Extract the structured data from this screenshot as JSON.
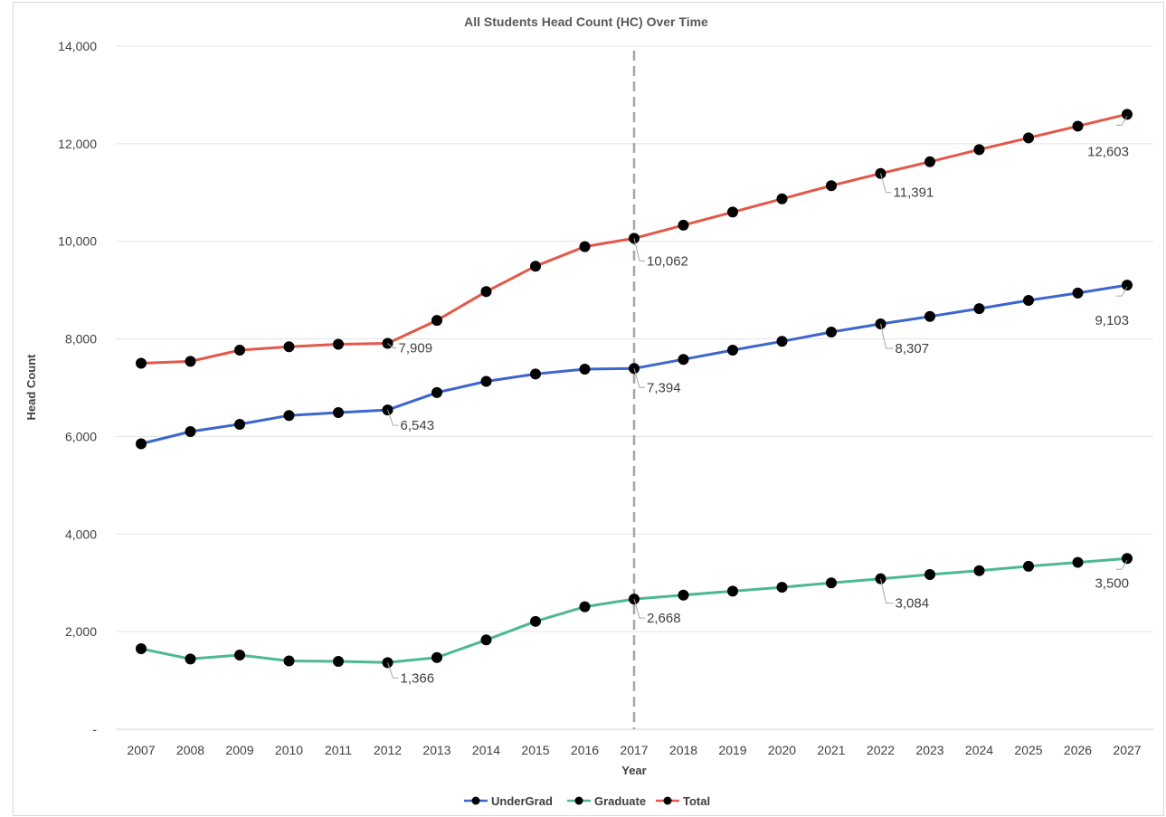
{
  "chart_data": {
    "type": "line",
    "title": "All Students Head Count (HC) Over Time",
    "xlabel": "Year",
    "ylabel": "Head Count",
    "ylim": [
      0,
      14000
    ],
    "y_ticks": [
      0,
      2000,
      4000,
      6000,
      8000,
      10000,
      12000,
      14000
    ],
    "y_tick_labels": [
      "-",
      "2,000",
      "4,000",
      "6,000",
      "8,000",
      "10,000",
      "12,000",
      "14,000"
    ],
    "grid": "horizontal",
    "legend_position": "bottom",
    "vertical_marker": {
      "x": "2017",
      "style": "dashed"
    },
    "categories": [
      "2007",
      "2008",
      "2009",
      "2010",
      "2011",
      "2012",
      "2013",
      "2014",
      "2015",
      "2016",
      "2017",
      "2018",
      "2019",
      "2020",
      "2021",
      "2022",
      "2023",
      "2024",
      "2025",
      "2026",
      "2027"
    ],
    "series": [
      {
        "name": "UnderGrad",
        "color": "#3c66cc",
        "values": [
          5850,
          6100,
          6250,
          6430,
          6490,
          6543,
          6900,
          7130,
          7280,
          7380,
          7394,
          7580,
          7770,
          7950,
          8140,
          8307,
          8460,
          8620,
          8790,
          8940,
          9103
        ],
        "data_labels": [
          {
            "index": 5,
            "text": "6,543"
          },
          {
            "index": 10,
            "text": "7,394"
          },
          {
            "index": 15,
            "text": "8,307"
          },
          {
            "index": 20,
            "text": "9,103"
          }
        ]
      },
      {
        "name": "Graduate",
        "color": "#4db894",
        "values": [
          1650,
          1440,
          1520,
          1400,
          1390,
          1366,
          1470,
          1830,
          2210,
          2510,
          2668,
          2750,
          2830,
          2910,
          3000,
          3084,
          3170,
          3250,
          3340,
          3420,
          3500
        ],
        "data_labels": [
          {
            "index": 5,
            "text": "1,366"
          },
          {
            "index": 10,
            "text": "2,668"
          },
          {
            "index": 15,
            "text": "3,084"
          },
          {
            "index": 20,
            "text": "3,500"
          }
        ]
      },
      {
        "name": "Total",
        "color": "#e3584a",
        "values": [
          7500,
          7540,
          7770,
          7840,
          7890,
          7909,
          8380,
          8970,
          9490,
          9890,
          10062,
          10330,
          10600,
          10870,
          11140,
          11391,
          11630,
          11880,
          12120,
          12360,
          12603
        ],
        "data_labels": [
          {
            "index": 5,
            "text": "7,909"
          },
          {
            "index": 10,
            "text": "10,062"
          },
          {
            "index": 15,
            "text": "11,391"
          },
          {
            "index": 20,
            "text": "12,603"
          }
        ]
      }
    ]
  }
}
